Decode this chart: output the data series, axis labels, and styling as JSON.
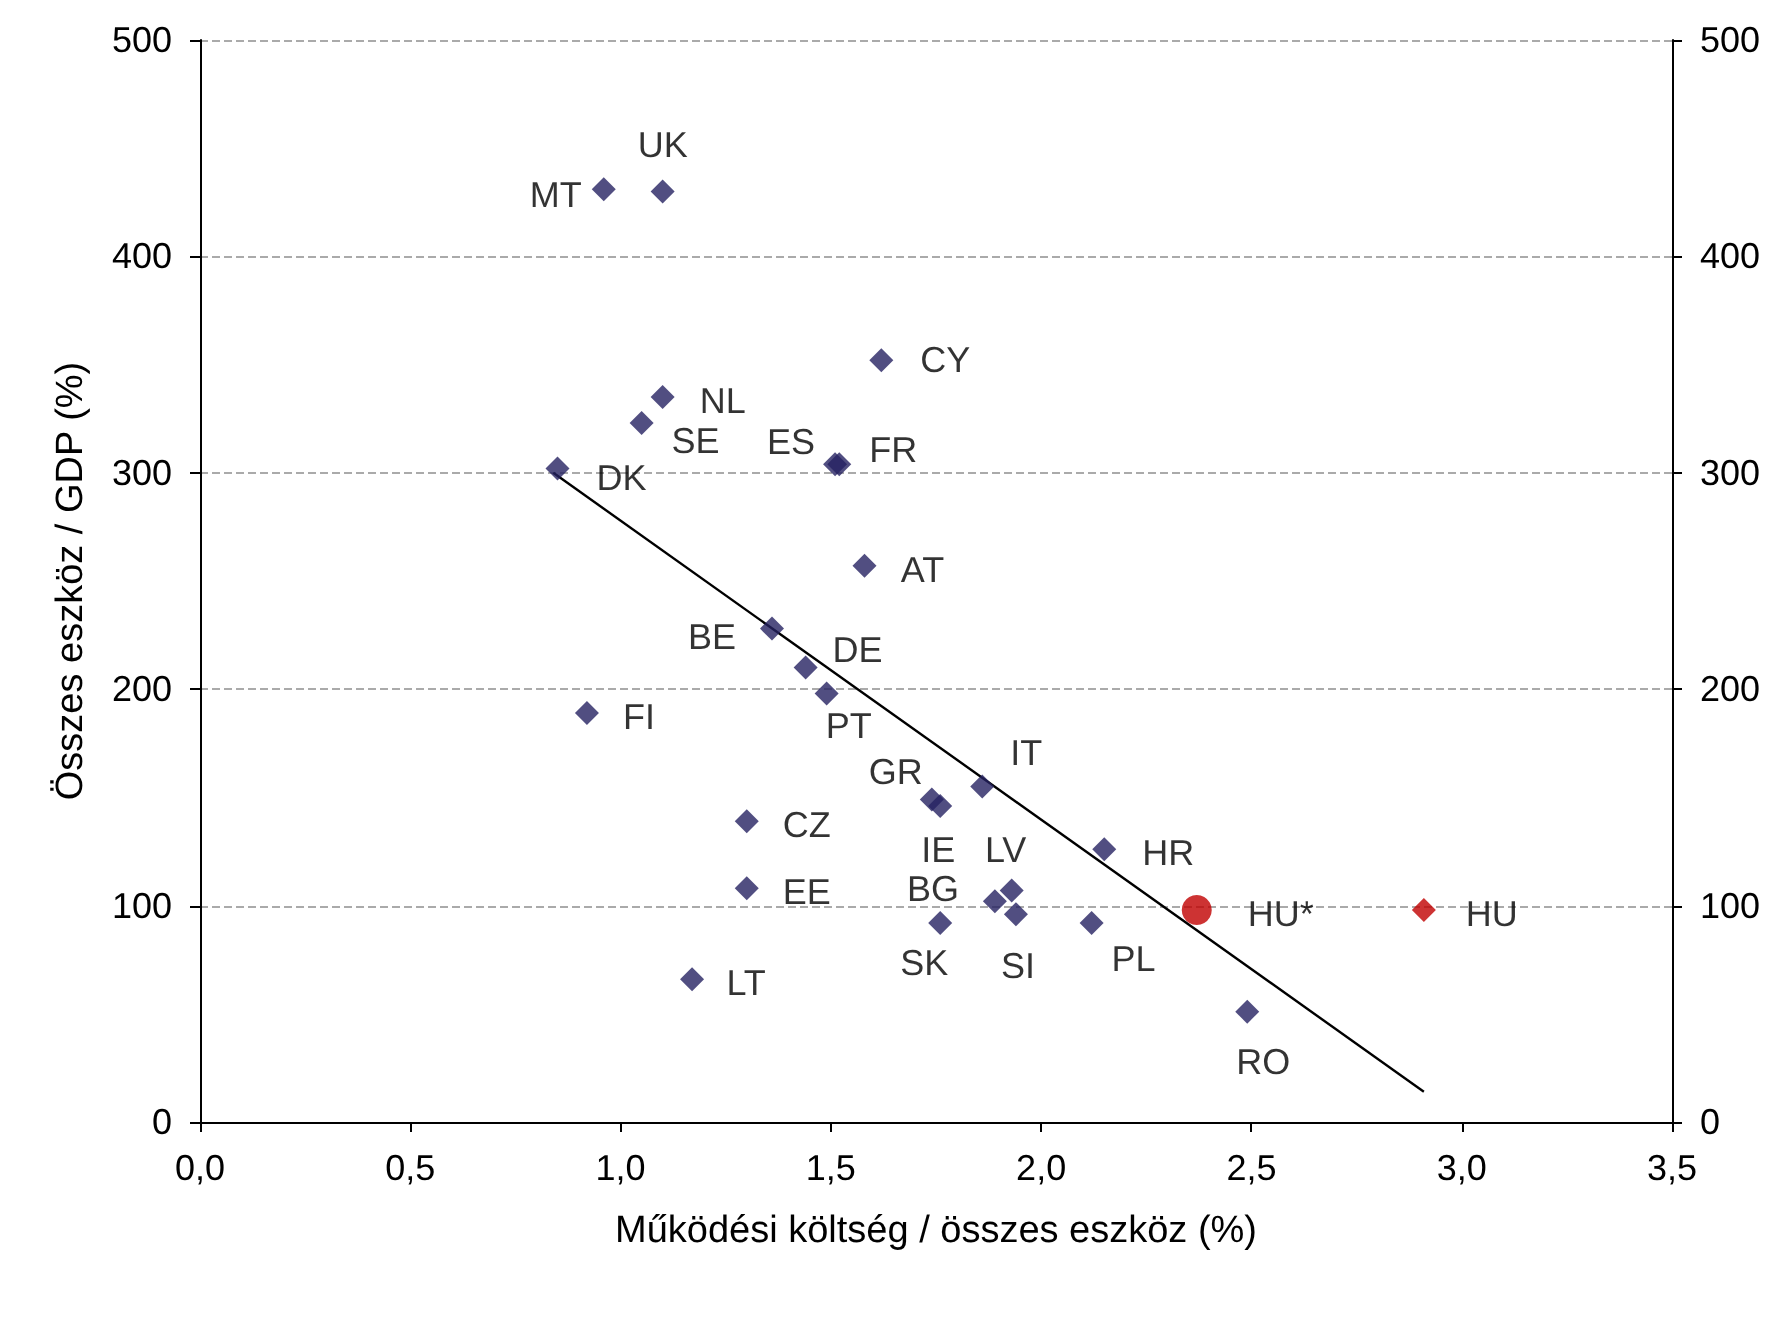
{
  "chart_data": {
    "type": "scatter",
    "xlabel": "Működési költség / összes eszköz (%)",
    "ylabel": "Összes eszköz / GDP (%)",
    "xlim": [
      0,
      3.5
    ],
    "xticks": [
      {
        "value": 0,
        "label": "0,0"
      },
      {
        "value": 0.5,
        "label": "0,5"
      },
      {
        "value": 1,
        "label": "1,0"
      },
      {
        "value": 1.5,
        "label": "1,5"
      },
      {
        "value": 2,
        "label": "2,0"
      },
      {
        "value": 2.5,
        "label": "2,5"
      },
      {
        "value": 3,
        "label": "3,0"
      },
      {
        "value": 3.5,
        "label": "3,5"
      }
    ],
    "ylim": [
      0,
      500
    ],
    "yticks": [
      0,
      100,
      200,
      300,
      400,
      500
    ],
    "y2lim": [
      0,
      500
    ],
    "y2ticks": [
      0,
      100,
      200,
      300,
      400,
      500
    ],
    "grid": "y",
    "series": [
      {
        "color": "#262262",
        "marker": "diamond",
        "x": [
          0.96,
          1.1,
          1.62,
          1.1,
          1.05,
          0.85,
          1.51,
          1.52,
          1.58,
          1.36,
          1.44,
          1.49,
          0.92,
          1.74,
          1.76,
          1.86,
          1.3,
          1.3,
          1.93,
          1.89,
          1.94,
          1.76,
          2.12,
          1.17,
          2.15,
          2.49
        ],
        "values": [
          431,
          430,
          352,
          335,
          323,
          302,
          304,
          304,
          257,
          228,
          210,
          198,
          189,
          149,
          146,
          155,
          139,
          108,
          107,
          102,
          96,
          92,
          92,
          66,
          126,
          51
        ]
      },
      {
        "color": "#c00000",
        "marker": "circle",
        "x": [
          2.37
        ],
        "values": [
          98
        ]
      },
      {
        "color": "#c00000",
        "marker": "diamond",
        "x": [
          2.91
        ],
        "values": [
          98
        ]
      },
      {
        "type": "line",
        "color": "#000000",
        "marker": "none",
        "x": [
          0.84,
          2.91
        ],
        "values": [
          300,
          14
        ]
      }
    ],
    "annotations": [
      {
        "text": "MT",
        "x": 0.96,
        "y": 431
      },
      {
        "text": "UK",
        "x": 1.1,
        "y": 430
      },
      {
        "text": "CY",
        "x": 1.62,
        "y": 352
      },
      {
        "text": "NL",
        "x": 1.1,
        "y": 335
      },
      {
        "text": "SE",
        "x": 1.05,
        "y": 323
      },
      {
        "text": "DK",
        "x": 0.85,
        "y": 302
      },
      {
        "text": "ES",
        "x": 1.51,
        "y": 304
      },
      {
        "text": "FR",
        "x": 1.52,
        "y": 304
      },
      {
        "text": "AT",
        "x": 1.58,
        "y": 257
      },
      {
        "text": "BE",
        "x": 1.36,
        "y": 228
      },
      {
        "text": "DE",
        "x": 1.44,
        "y": 210
      },
      {
        "text": "PT",
        "x": 1.49,
        "y": 198
      },
      {
        "text": "FI",
        "x": 0.92,
        "y": 189
      },
      {
        "text": "GR",
        "x": 1.74,
        "y": 149
      },
      {
        "text": "IE",
        "x": 1.76,
        "y": 146
      },
      {
        "text": "IT",
        "x": 1.86,
        "y": 155
      },
      {
        "text": "CZ",
        "x": 1.3,
        "y": 139
      },
      {
        "text": "EE",
        "x": 1.3,
        "y": 108
      },
      {
        "text": "LV",
        "x": 1.93,
        "y": 107
      },
      {
        "text": "BG",
        "x": 1.89,
        "y": 102
      },
      {
        "text": "SI",
        "x": 1.94,
        "y": 96
      },
      {
        "text": "SK",
        "x": 1.76,
        "y": 92
      },
      {
        "text": "PL",
        "x": 2.12,
        "y": 92
      },
      {
        "text": "LT",
        "x": 1.17,
        "y": 66
      },
      {
        "text": "HR",
        "x": 2.15,
        "y": 126
      },
      {
        "text": "HU*",
        "x": 2.37,
        "y": 98
      },
      {
        "text": "HU",
        "x": 2.91,
        "y": 98
      },
      {
        "text": "RO",
        "x": 2.49,
        "y": 51
      }
    ]
  }
}
